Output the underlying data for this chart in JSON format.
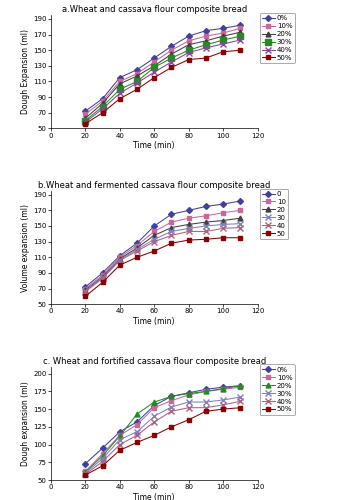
{
  "time": [
    20,
    30,
    40,
    50,
    60,
    70,
    80,
    90,
    100,
    110
  ],
  "panel_a": {
    "title": "a.Wheat and cassava flour composite bread",
    "ylabel": "Dough Expansion (ml)",
    "xlabel": "Time (min)",
    "ylim": [
      50,
      195
    ],
    "yticks": [
      50,
      70,
      90,
      110,
      130,
      150,
      170,
      190
    ],
    "xlim": [
      0,
      120
    ],
    "xticks": [
      0,
      20,
      40,
      60,
      80,
      100,
      120
    ],
    "legend_labels": [
      "0%",
      "10%",
      "20%",
      "30%",
      "40%",
      "50%"
    ],
    "series": [
      [
        72,
        88,
        115,
        125,
        140,
        155,
        168,
        175,
        178,
        182
      ],
      [
        68,
        85,
        110,
        120,
        135,
        150,
        162,
        168,
        172,
        178
      ],
      [
        63,
        82,
        107,
        117,
        130,
        145,
        157,
        162,
        168,
        173
      ],
      [
        60,
        78,
        100,
        110,
        128,
        140,
        150,
        157,
        163,
        168
      ],
      [
        58,
        75,
        95,
        108,
        122,
        135,
        147,
        153,
        158,
        163
      ],
      [
        56,
        70,
        88,
        100,
        115,
        128,
        138,
        140,
        148,
        150
      ]
    ],
    "colors": [
      "#4040A0",
      "#CC6699",
      "#404040",
      "#228B22",
      "#9040A0",
      "#8B0000"
    ],
    "markers": [
      "D",
      "s",
      "^",
      "s",
      "x",
      "s"
    ],
    "markersizes": [
      3,
      3.5,
      3.5,
      4,
      4,
      3.5
    ]
  },
  "panel_b": {
    "title": "b.Wheat and fermented cassava flour composite bread",
    "ylabel": "Volume expansion (ml)",
    "xlabel": "Time (min)",
    "ylim": [
      50,
      195
    ],
    "yticks": [
      50,
      70,
      90,
      110,
      130,
      150,
      170,
      190
    ],
    "xlim": [
      0,
      120
    ],
    "xticks": [
      0,
      20,
      40,
      60,
      80,
      100,
      120
    ],
    "legend_labels": [
      "0",
      "10",
      "20",
      "30",
      "40",
      "50"
    ],
    "series": [
      [
        72,
        90,
        112,
        128,
        150,
        165,
        170,
        175,
        178,
        182
      ],
      [
        70,
        87,
        110,
        125,
        143,
        155,
        160,
        163,
        167,
        170
      ],
      [
        68,
        85,
        108,
        122,
        138,
        148,
        152,
        155,
        157,
        160
      ],
      [
        67,
        84,
        107,
        120,
        133,
        143,
        147,
        150,
        152,
        153
      ],
      [
        66,
        83,
        106,
        118,
        130,
        138,
        143,
        143,
        147,
        148
      ],
      [
        60,
        78,
        100,
        110,
        118,
        128,
        132,
        133,
        135,
        135
      ]
    ],
    "colors": [
      "#4040A0",
      "#CC6699",
      "#404040",
      "#8080C0",
      "#B06080",
      "#8B0000"
    ],
    "markers": [
      "D",
      "s",
      "^",
      "x",
      "x",
      "s"
    ],
    "markersizes": [
      3,
      3.5,
      3.5,
      4,
      4,
      3.5
    ]
  },
  "panel_c": {
    "title": "c. Wheat and fortified cassava flour composite bread",
    "ylabel": "Dough expansion (ml)",
    "xlabel": "Time (min)",
    "ylim": [
      50,
      210
    ],
    "yticks": [
      50,
      75,
      100,
      125,
      150,
      175,
      200
    ],
    "xlim": [
      0,
      120
    ],
    "xticks": [
      0,
      20,
      40,
      60,
      80,
      100,
      120
    ],
    "legend_labels": [
      "0%",
      "10%",
      "20%",
      "30%",
      "40%",
      "50%"
    ],
    "series": [
      [
        73,
        95,
        118,
        132,
        155,
        168,
        173,
        178,
        181,
        183
      ],
      [
        62,
        87,
        113,
        128,
        152,
        162,
        170,
        175,
        178,
        181
      ],
      [
        61,
        84,
        112,
        143,
        160,
        168,
        172,
        175,
        179,
        183
      ],
      [
        60,
        80,
        107,
        118,
        140,
        153,
        160,
        160,
        163,
        167
      ],
      [
        58,
        76,
        100,
        113,
        132,
        147,
        152,
        152,
        156,
        161
      ],
      [
        57,
        70,
        92,
        103,
        113,
        125,
        135,
        147,
        150,
        152
      ]
    ],
    "colors": [
      "#4040A0",
      "#CC6699",
      "#228B22",
      "#8080C0",
      "#B06080",
      "#8B0000"
    ],
    "markers": [
      "D",
      "s",
      "^",
      "x",
      "x",
      "s"
    ],
    "markersizes": [
      3,
      3.5,
      3.5,
      4,
      4,
      3.5
    ]
  }
}
